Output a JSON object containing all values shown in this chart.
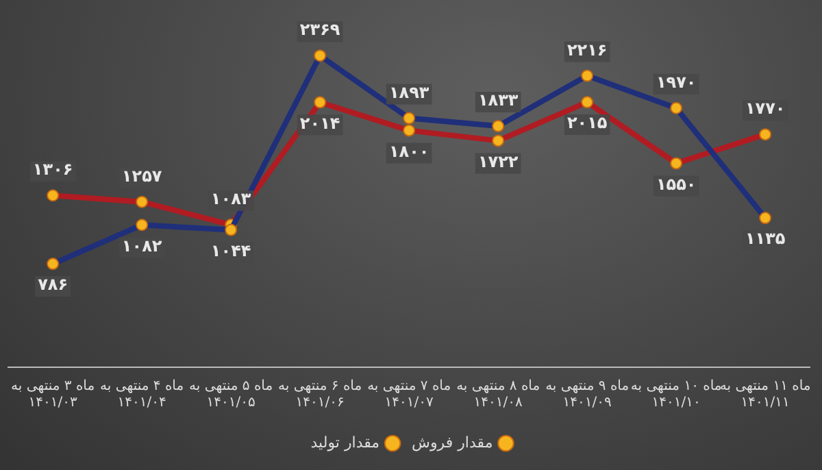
{
  "chart_data": {
    "type": "line",
    "categories": [
      "ماه ۳ منتهی به\n۱۴۰۱/۰۳",
      "ماه ۴ منتهی به\n۱۴۰۱/۰۴",
      "ماه ۵ منتهی به\n۱۴۰۱/۰۵",
      "ماه ۶ منتهی به\n۱۴۰۱/۰۶",
      "ماه ۷ منتهی به\n۱۴۰۱/۰۷",
      "ماه ۸ منتهی به\n۱۴۰۱/۰۸",
      "ماه ۹ منتهی به\n۱۴۰۱/۰۹",
      "ماه ۱۰ منتهی به\n۱۴۰۱/۱۰",
      "ماه ۱۱ منتهی به\n۱۴۰۱/۱۱"
    ],
    "series": [
      {
        "name": "مقدار فروش",
        "color": "#1f2f7a",
        "values": [
          786,
          1082,
          1044,
          2369,
          1893,
          1833,
          2216,
          1970,
          1135
        ],
        "value_labels": [
          "۷۸۶",
          "۱۰۸۲",
          "۱۰۴۴",
          "۲۳۶۹",
          "۱۸۹۳",
          "۱۸۳۳",
          "۲۲۱۶",
          "۱۹۷۰",
          "۱۱۳۵"
        ]
      },
      {
        "name": "مقدار تولید",
        "color": "#b01c22",
        "values": [
          1306,
          1257,
          1083,
          2014,
          1800,
          1722,
          2015,
          1550,
          1770
        ],
        "value_labels": [
          "۱۳۰۶",
          "۱۲۵۷",
          "۱۰۸۳",
          "۲۰۱۴",
          "۱۸۰۰",
          "۱۷۲۲",
          "۲۰۱۵",
          "۱۵۵۰",
          "۱۷۷۰"
        ]
      }
    ],
    "legend": "bottom",
    "grid": false,
    "marker": "circle",
    "line_style": "solid",
    "tick_labels": "x"
  }
}
